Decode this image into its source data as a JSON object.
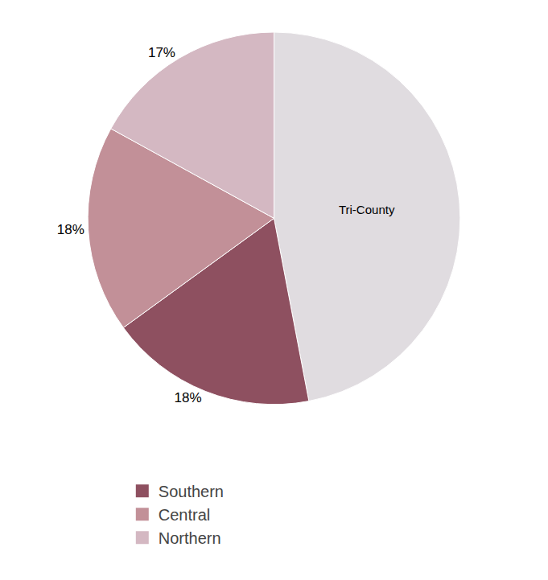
{
  "chart_data": {
    "type": "pie",
    "categories": [
      "Tri-County",
      "Southern",
      "Central",
      "Northern"
    ],
    "values": [
      47,
      18,
      18,
      17
    ],
    "value_labels": [
      null,
      "18%",
      "18%",
      "17%"
    ],
    "colors": [
      "#e0dce0",
      "#8e5060",
      "#c29098",
      "#d4b8c2"
    ],
    "data_labels": true,
    "legend": "bottom"
  }
}
